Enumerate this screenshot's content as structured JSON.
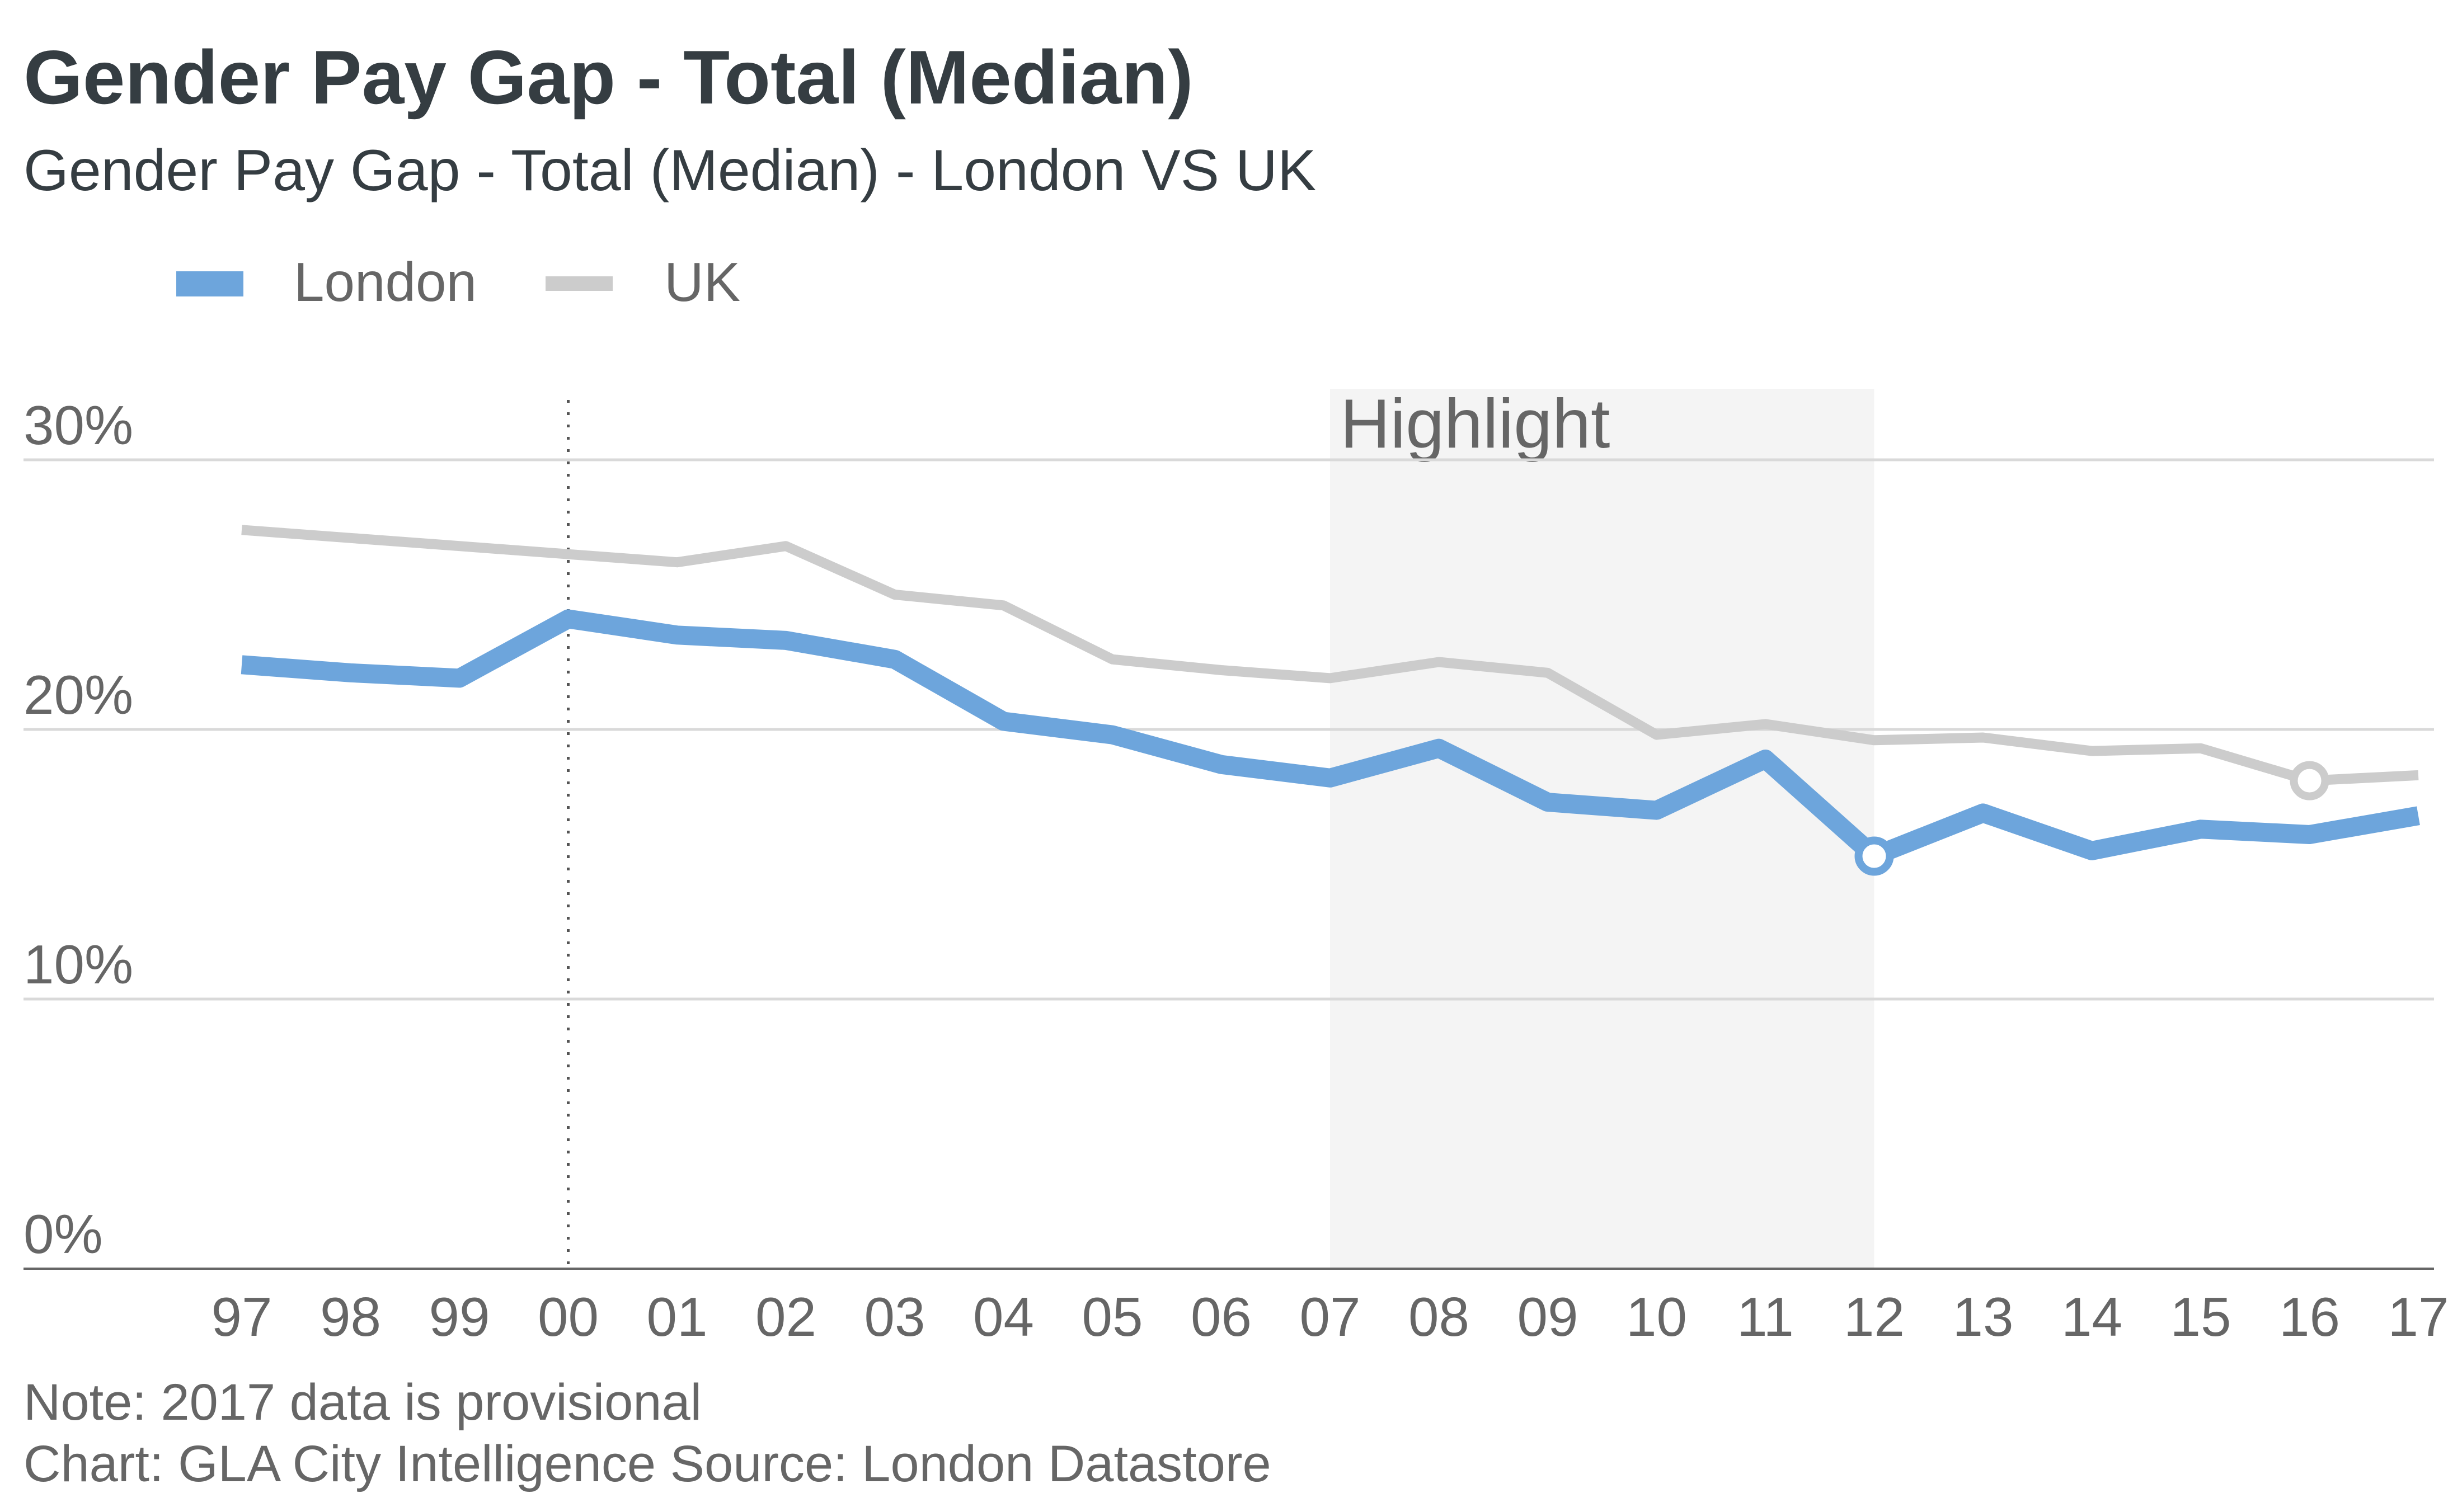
{
  "chart_data": {
    "type": "line",
    "title": "Gender Pay Gap - Total (Median)",
    "subtitle": "Gender Pay Gap - Total (Median) - London VS UK",
    "categories": [
      "97",
      "98",
      "99",
      "00",
      "01",
      "02",
      "03",
      "04",
      "05",
      "06",
      "07",
      "08",
      "09",
      "10",
      "11",
      "12",
      "13",
      "14",
      "15",
      "16",
      "17"
    ],
    "series": [
      {
        "name": "London",
        "color": "#6da5dc",
        "values": [
          22.4,
          22.1,
          21.9,
          24.1,
          23.5,
          23.3,
          22.6,
          20.3,
          19.8,
          18.7,
          18.2,
          19.3,
          17.3,
          17.0,
          18.9,
          15.3,
          16.9,
          15.5,
          16.3,
          16.1,
          16.8
        ]
      },
      {
        "name": "UK",
        "color": "#cccccc",
        "values": [
          27.4,
          27.1,
          26.8,
          26.5,
          26.2,
          26.8,
          25.0,
          24.6,
          22.6,
          22.2,
          21.9,
          22.5,
          22.1,
          19.8,
          20.2,
          19.6,
          19.7,
          19.2,
          19.3,
          18.1,
          18.3
        ]
      }
    ],
    "ylim": [
      0,
      30
    ],
    "yticks": [
      "0%",
      "10%",
      "20%",
      "30%"
    ],
    "ytick_values": [
      0,
      10,
      20,
      30
    ],
    "grid": true,
    "legend_position": "top-left",
    "reference_line_category": "00",
    "highlight": {
      "label": "Highlight",
      "start": "07",
      "end": "12"
    },
    "markers": [
      {
        "series": "London",
        "category": "12"
      },
      {
        "series": "UK",
        "category": "16"
      }
    ],
    "note": "Note: 2017 data is provisional",
    "source": "Chart: GLA City Intelligence  Source: London Datastore"
  }
}
